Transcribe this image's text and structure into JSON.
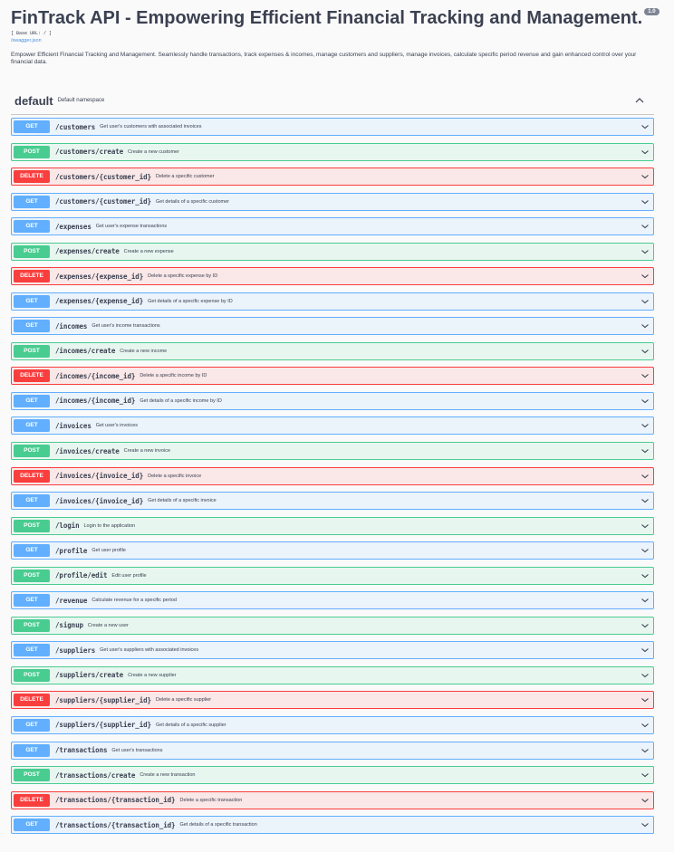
{
  "info": {
    "title": "FinTrack API - Empowering Efficient Financial Tracking and Management.",
    "version": "1.0",
    "base_url": "[ Base URL: / ]",
    "spec_link": "/swagger.json",
    "description": "Empower Efficient Financial Tracking and Management. Seamlessly handle transactions, track expenses & incomes, manage customers and suppliers, manage invoices, calculate specific period revenue and gain enhanced control over your financial data."
  },
  "colors": {
    "get": "#61affe",
    "post": "#49cc90",
    "delete": "#f93e3e",
    "text": "#3b4151"
  },
  "tag": {
    "name": "default",
    "description": "Default namespace",
    "toggle_icon": "chevron-up-icon"
  },
  "operations": [
    {
      "method": "GET",
      "path": "/customers",
      "summary": "Get user's customers with associated invoices"
    },
    {
      "method": "POST",
      "path": "/customers/create",
      "summary": "Create a new customer"
    },
    {
      "method": "DELETE",
      "path": "/customers/{customer_id}",
      "summary": "Delete a specific customer"
    },
    {
      "method": "GET",
      "path": "/customers/{customer_id}",
      "summary": "Get details of a specific customer"
    },
    {
      "method": "GET",
      "path": "/expenses",
      "summary": "Get user's expense transactions"
    },
    {
      "method": "POST",
      "path": "/expenses/create",
      "summary": "Create a new expense"
    },
    {
      "method": "DELETE",
      "path": "/expenses/{expense_id}",
      "summary": "Delete a specific expense by ID"
    },
    {
      "method": "GET",
      "path": "/expenses/{expense_id}",
      "summary": "Get details of a specific expense by ID"
    },
    {
      "method": "GET",
      "path": "/incomes",
      "summary": "Get user's income transactions"
    },
    {
      "method": "POST",
      "path": "/incomes/create",
      "summary": "Create a new income"
    },
    {
      "method": "DELETE",
      "path": "/incomes/{income_id}",
      "summary": "Delete a specific income by ID"
    },
    {
      "method": "GET",
      "path": "/incomes/{income_id}",
      "summary": "Get details of a specific income by ID"
    },
    {
      "method": "GET",
      "path": "/invoices",
      "summary": "Get user's invoices"
    },
    {
      "method": "POST",
      "path": "/invoices/create",
      "summary": "Create a new invoice"
    },
    {
      "method": "DELETE",
      "path": "/invoices/{invoice_id}",
      "summary": "Delete a specific invoice"
    },
    {
      "method": "GET",
      "path": "/invoices/{invoice_id}",
      "summary": "Get details of a specific invoice"
    },
    {
      "method": "POST",
      "path": "/login",
      "summary": "Login to the application"
    },
    {
      "method": "GET",
      "path": "/profile",
      "summary": "Get user profile"
    },
    {
      "method": "POST",
      "path": "/profile/edit",
      "summary": "Edit user profile"
    },
    {
      "method": "GET",
      "path": "/revenue",
      "summary": "Calculate revenue for a specific period"
    },
    {
      "method": "POST",
      "path": "/signup",
      "summary": "Create a new user"
    },
    {
      "method": "GET",
      "path": "/suppliers",
      "summary": "Get user's suppliers with associated invoices"
    },
    {
      "method": "POST",
      "path": "/suppliers/create",
      "summary": "Create a new supplier"
    },
    {
      "method": "DELETE",
      "path": "/suppliers/{supplier_id}",
      "summary": "Delete a specific supplier"
    },
    {
      "method": "GET",
      "path": "/suppliers/{supplier_id}",
      "summary": "Get details of a specific supplier"
    },
    {
      "method": "GET",
      "path": "/transactions",
      "summary": "Get user's transactions"
    },
    {
      "method": "POST",
      "path": "/transactions/create",
      "summary": "Create a new transaction"
    },
    {
      "method": "DELETE",
      "path": "/transactions/{transaction_id}",
      "summary": "Delete a specific transaction"
    },
    {
      "method": "GET",
      "path": "/transactions/{transaction_id}",
      "summary": "Get details of a specific transaction"
    }
  ]
}
